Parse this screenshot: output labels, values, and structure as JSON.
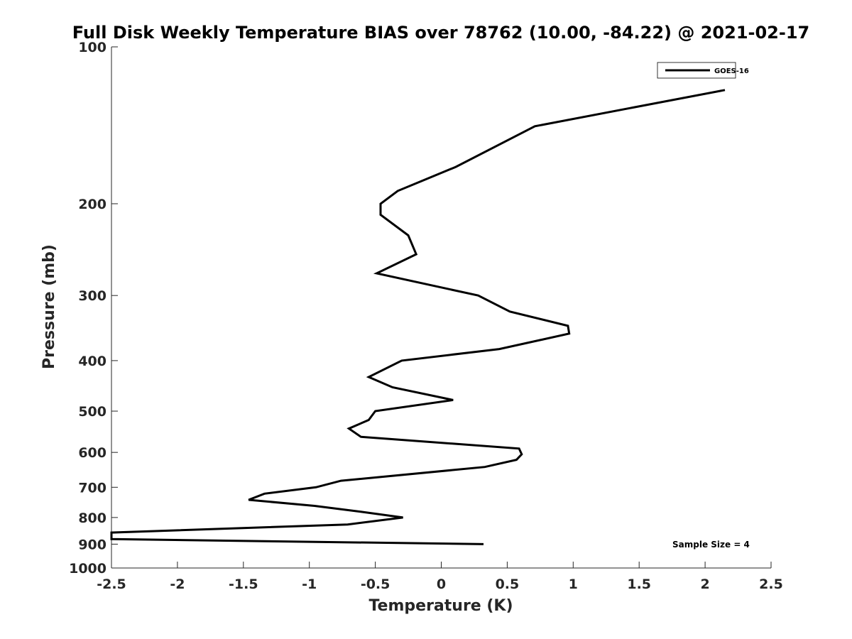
{
  "chart_data": {
    "type": "line",
    "title": "Full Disk Weekly Temperature BIAS over 78762 (10.00, -84.22) @ 2021-02-17",
    "xlabel": "Temperature (K)",
    "ylabel": "Pressure (mb)",
    "xlim": [
      -2.5,
      2.5
    ],
    "ylim": [
      100,
      1000
    ],
    "y_scale": "log",
    "y_direction": "reversed",
    "grid": false,
    "x_ticks": [
      "-2.5",
      "-2",
      "-1.5",
      "-1",
      "-0.5",
      "0",
      "0.5",
      "1",
      "1.5",
      "2",
      "2.5"
    ],
    "x_tick_values": [
      -2.5,
      -2,
      -1.5,
      -1,
      -0.5,
      0,
      0.5,
      1,
      1.5,
      2,
      2.5
    ],
    "y_ticks": [
      "100",
      "200",
      "300",
      "400",
      "500",
      "600",
      "700",
      "800",
      "900",
      "1000"
    ],
    "y_tick_values": [
      100,
      200,
      300,
      400,
      500,
      600,
      700,
      800,
      900,
      1000
    ],
    "legend_position": "top-right",
    "annotation": "Sample Size = 4",
    "series": [
      {
        "name": "GOES-16",
        "color": "#000000",
        "points": [
          [
            2.15,
            121
          ],
          [
            0.71,
            142
          ],
          [
            0.11,
            170
          ],
          [
            -0.33,
            189
          ],
          [
            -0.46,
            200
          ],
          [
            -0.46,
            210
          ],
          [
            -0.25,
            230
          ],
          [
            -0.19,
            250
          ],
          [
            -0.49,
            272
          ],
          [
            0.28,
            300
          ],
          [
            0.52,
            322
          ],
          [
            0.96,
            343
          ],
          [
            0.97,
            355
          ],
          [
            0.44,
            380
          ],
          [
            -0.3,
            400
          ],
          [
            -0.55,
            430
          ],
          [
            -0.37,
            450
          ],
          [
            0.09,
            476
          ],
          [
            -0.5,
            500
          ],
          [
            -0.55,
            520
          ],
          [
            -0.7,
            540
          ],
          [
            -0.61,
            560
          ],
          [
            0.59,
            590
          ],
          [
            0.61,
            605
          ],
          [
            0.57,
            620
          ],
          [
            0.33,
            640
          ],
          [
            -0.76,
            680
          ],
          [
            -0.95,
            700
          ],
          [
            -1.34,
            720
          ],
          [
            -1.46,
            740
          ],
          [
            -0.96,
            760
          ],
          [
            -0.61,
            780
          ],
          [
            -0.29,
            800
          ],
          [
            -0.71,
            825
          ],
          [
            -2.5,
            855
          ],
          [
            -2.5,
            880
          ],
          [
            0.32,
            900
          ]
        ]
      }
    ]
  }
}
